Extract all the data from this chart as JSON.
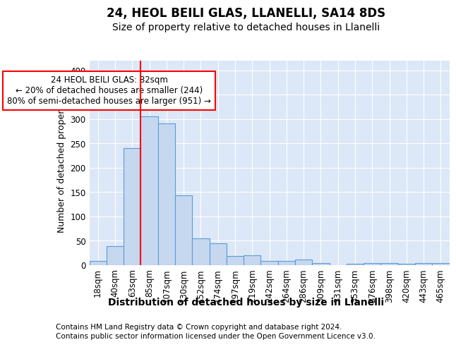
{
  "title1": "24, HEOL BEILI GLAS, LLANELLI, SA14 8DS",
  "title2": "Size of property relative to detached houses in Llanelli",
  "xlabel": "Distribution of detached houses by size in Llanelli",
  "ylabel": "Number of detached properties",
  "categories": [
    "18sqm",
    "40sqm",
    "63sqm",
    "85sqm",
    "107sqm",
    "130sqm",
    "152sqm",
    "174sqm",
    "197sqm",
    "219sqm",
    "242sqm",
    "264sqm",
    "286sqm",
    "309sqm",
    "331sqm",
    "353sqm",
    "376sqm",
    "398sqm",
    "420sqm",
    "443sqm",
    "465sqm"
  ],
  "values": [
    8,
    39,
    241,
    305,
    291,
    144,
    55,
    45,
    19,
    20,
    9,
    9,
    11,
    5,
    0,
    3,
    4,
    4,
    3,
    5,
    5
  ],
  "bar_color": "#c5d8f0",
  "bar_edge_color": "#5b9bd5",
  "bar_edge_width": 0.8,
  "vline_color": "red",
  "annotation_text": "24 HEOL BEILI GLAS: 82sqm\n← 20% of detached houses are smaller (244)\n80% of semi-detached houses are larger (951) →",
  "annotation_box_color": "white",
  "annotation_box_edge_color": "red",
  "footer1": "Contains HM Land Registry data © Crown copyright and database right 2024.",
  "footer2": "Contains public sector information licensed under the Open Government Licence v3.0.",
  "bg_color": "#ffffff",
  "plot_bg_color": "#dce8f7",
  "grid_color": "white",
  "ylim": [
    0,
    420
  ],
  "title1_fontsize": 12,
  "title2_fontsize": 10,
  "tick_fontsize": 8.5,
  "ylabel_fontsize": 9,
  "xlabel_fontsize": 10,
  "footer_fontsize": 7.5,
  "annotation_fontsize": 8.5
}
